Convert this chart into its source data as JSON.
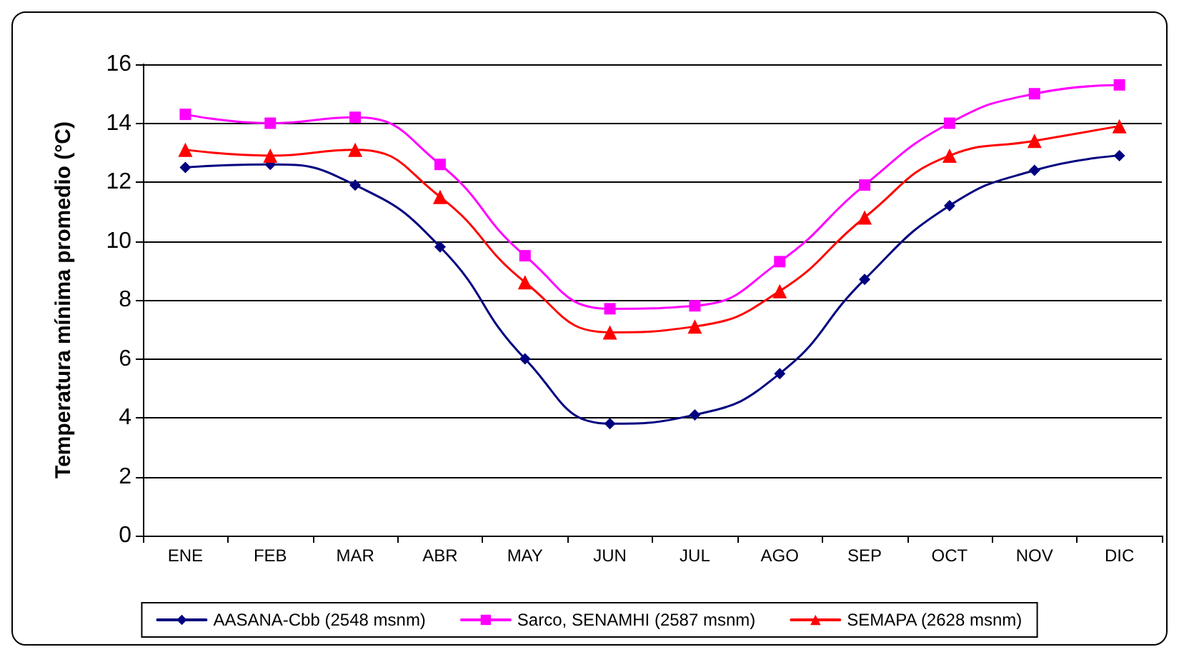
{
  "chart_data": {
    "type": "line",
    "ylabel": "Temperatura mínima promedio (°C)",
    "categories": [
      "ENE",
      "FEB",
      "MAR",
      "ABR",
      "MAY",
      "JUN",
      "JUL",
      "AGO",
      "SEP",
      "OCT",
      "NOV",
      "DIC"
    ],
    "series": [
      {
        "name": "AASANA-Cbb (2548 msnm)",
        "color": "#000080",
        "marker": "diamond",
        "values": [
          12.5,
          12.6,
          11.9,
          9.8,
          6.0,
          3.8,
          4.1,
          5.5,
          8.7,
          11.2,
          12.4,
          12.9
        ]
      },
      {
        "name": "Sarco, SENAMHI (2587 msnm)",
        "color": "#ff00ff",
        "marker": "square",
        "values": [
          14.3,
          14.0,
          14.2,
          12.6,
          9.5,
          7.7,
          7.8,
          9.3,
          11.9,
          14.0,
          15.0,
          15.3
        ]
      },
      {
        "name": "SEMAPA (2628 msnm)",
        "color": "#ff0000",
        "marker": "triangle",
        "values": [
          13.1,
          12.9,
          13.1,
          11.5,
          8.6,
          6.9,
          7.1,
          8.3,
          10.8,
          12.9,
          13.4,
          13.9
        ]
      }
    ],
    "ylim": [
      0,
      16
    ],
    "yticks": [
      0,
      2,
      4,
      6,
      8,
      10,
      12,
      14,
      16
    ],
    "grid": "y",
    "legend": "bottom",
    "line_style": "solid"
  }
}
